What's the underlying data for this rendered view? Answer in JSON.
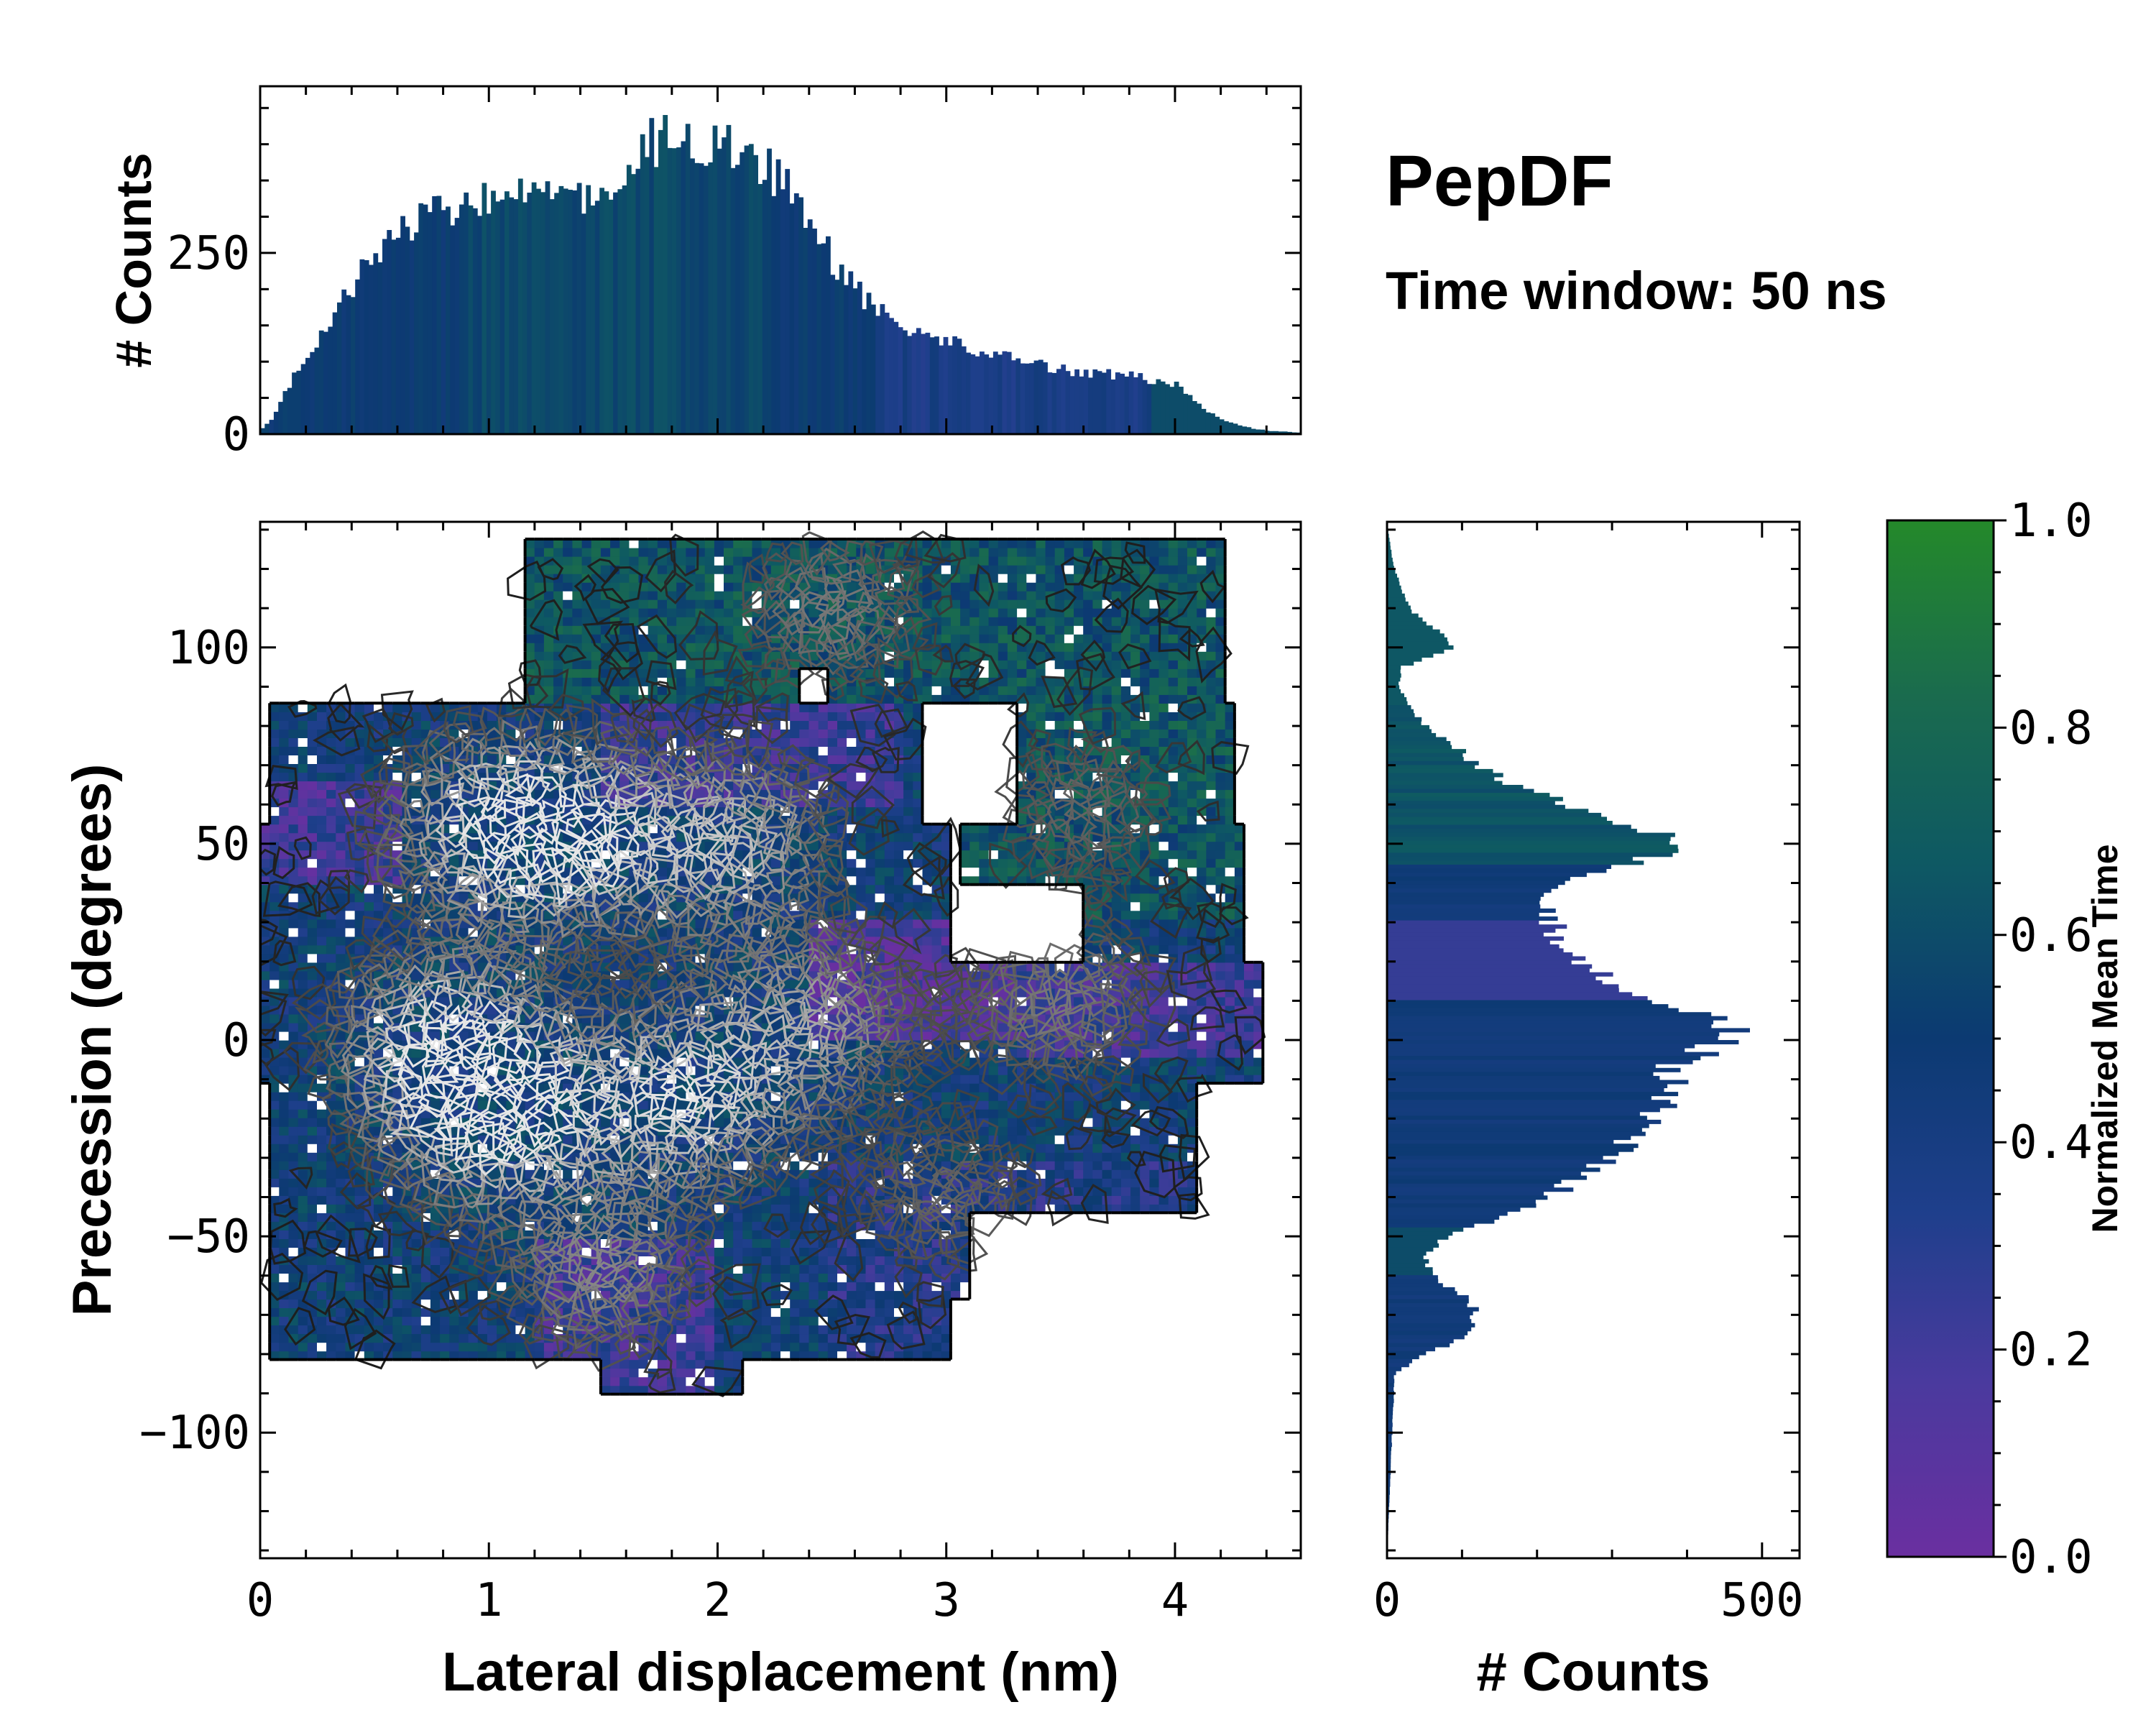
{
  "chart_data": [
    {
      "id": "top_histogram",
      "type": "bar",
      "ylabel": "# Counts",
      "xlim": [
        0,
        4.55
      ],
      "ylim": [
        0,
        480
      ],
      "yticks": [
        0,
        250
      ],
      "profile_x": [
        0,
        0.05,
        0.15,
        0.3,
        0.45,
        0.6,
        0.8,
        1.0,
        1.2,
        1.4,
        1.5,
        1.6,
        1.7,
        1.8,
        1.9,
        2.0,
        2.1,
        2.2,
        2.3,
        2.4,
        2.5,
        2.6,
        2.7,
        2.8,
        2.9,
        3.0,
        3.2,
        3.4,
        3.6,
        3.8,
        3.9,
        4.0,
        4.1,
        4.2,
        4.3,
        4.4,
        4.55
      ],
      "profile_counts": [
        5,
        20,
        80,
        150,
        230,
        280,
        310,
        320,
        325,
        320,
        330,
        380,
        400,
        410,
        405,
        395,
        390,
        370,
        340,
        300,
        240,
        200,
        170,
        150,
        140,
        130,
        110,
        95,
        85,
        80,
        75,
        70,
        40,
        20,
        10,
        5,
        2
      ]
    },
    {
      "id": "main_heatmap",
      "type": "heatmap",
      "xlabel": "Lateral displacement (nm)",
      "ylabel": "Precession (degrees)",
      "xlim": [
        0,
        4.55
      ],
      "ylim": [
        -132,
        132
      ],
      "xticks": [
        0,
        1,
        2,
        3,
        4
      ],
      "xtick_labels": [
        "0",
        "1",
        "2",
        "3",
        "4"
      ],
      "yticks": [
        -100,
        -50,
        0,
        50,
        100
      ],
      "ytick_labels": [
        "−100",
        "−50",
        "0",
        "50",
        "100"
      ],
      "density_peaks": [
        {
          "x": 1.05,
          "y": -20,
          "weight": 1.0
        },
        {
          "x": 1.85,
          "y": -15,
          "weight": 0.9
        },
        {
          "x": 0.8,
          "y": 0,
          "weight": 0.9
        },
        {
          "x": 1.35,
          "y": 52,
          "weight": 0.8
        },
        {
          "x": 2.05,
          "y": 50,
          "weight": 0.75
        },
        {
          "x": 1.0,
          "y": 55,
          "weight": 0.7
        },
        {
          "x": 2.4,
          "y": 5,
          "weight": 0.6
        },
        {
          "x": 3.5,
          "y": 10,
          "weight": 0.45
        },
        {
          "x": 2.5,
          "y": 110,
          "weight": 0.45
        },
        {
          "x": 3.6,
          "y": 60,
          "weight": 0.35
        },
        {
          "x": 1.5,
          "y": -60,
          "weight": 0.5
        },
        {
          "x": 3.0,
          "y": -40,
          "weight": 0.35
        }
      ]
    },
    {
      "id": "right_histogram",
      "type": "bar",
      "orientation": "horizontal",
      "xlabel": "# Counts",
      "xlim": [
        0,
        550
      ],
      "xticks": [
        0,
        500
      ],
      "xtick_labels": [
        "0",
        "500"
      ],
      "ylim": [
        -132,
        132
      ],
      "profile_y": [
        -132,
        -85,
        -80,
        -75,
        -70,
        -65,
        -60,
        -55,
        -50,
        -45,
        -40,
        -30,
        -20,
        -10,
        -5,
        0,
        5,
        10,
        15,
        20,
        25,
        30,
        35,
        40,
        45,
        50,
        55,
        60,
        65,
        70,
        75,
        80,
        85,
        90,
        95,
        100,
        105,
        110,
        115,
        120,
        125,
        132
      ],
      "profile_counts": [
        0,
        10,
        50,
        110,
        120,
        100,
        60,
        50,
        80,
        150,
        220,
        290,
        360,
        380,
        390,
        470,
        440,
        360,
        300,
        260,
        230,
        220,
        210,
        240,
        320,
        400,
        320,
        240,
        170,
        120,
        90,
        50,
        30,
        15,
        20,
        90,
        60,
        30,
        20,
        10,
        5,
        0
      ]
    },
    {
      "id": "colorbar",
      "type": "colorbar",
      "label": "Normalized Mean Time",
      "range": [
        0,
        1
      ],
      "ticks": [
        0,
        0.2,
        0.4,
        0.6,
        0.8,
        1.0
      ],
      "tick_labels": [
        "0.0",
        "0.2",
        "0.4",
        "0.6",
        "0.8",
        "1.0"
      ],
      "colors": [
        "#6a2fa0",
        "#3d3f9a",
        "#1c3f86",
        "#0d3a6e",
        "#0f5a5e",
        "#1a6c4c",
        "#23872a"
      ]
    }
  ],
  "annotations": {
    "title": "PepDF",
    "subtitle": "Time window: 50 ns"
  }
}
